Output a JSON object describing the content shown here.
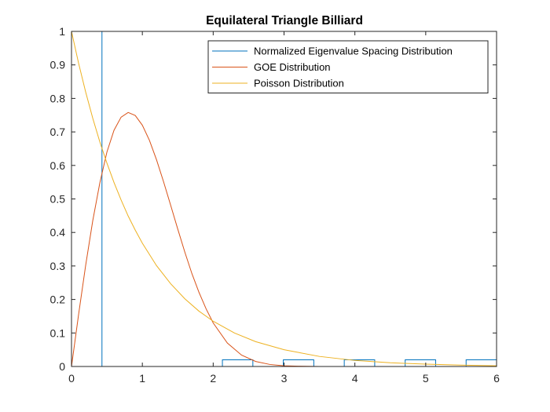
{
  "chart_data": {
    "type": "line",
    "title": "Equilateral Triangle Billiard",
    "xlabel": "",
    "ylabel": "",
    "xlim": [
      0,
      6
    ],
    "ylim": [
      0,
      1
    ],
    "x_ticks": [
      "0",
      "1",
      "2",
      "3",
      "4",
      "5",
      "6"
    ],
    "y_ticks": [
      "0",
      "0.1",
      "0.2",
      "0.3",
      "0.4",
      "0.5",
      "0.6",
      "0.7",
      "0.8",
      "0.9",
      "1"
    ],
    "grid": false,
    "legend_position": "top-right",
    "histogram": {
      "name": "Normalized Eigenvalue Spacing Distribution",
      "color": "#0072BD",
      "spike": {
        "x": 0.43,
        "height": 1.0
      },
      "bins": [
        {
          "x0": 0.43,
          "x1": 2.13,
          "value": 0
        },
        {
          "x0": 2.13,
          "x1": 2.56,
          "value": 0.02
        },
        {
          "x0": 2.56,
          "x1": 2.99,
          "value": 0
        },
        {
          "x0": 2.99,
          "x1": 3.42,
          "value": 0.02
        },
        {
          "x0": 3.42,
          "x1": 3.85,
          "value": 0
        },
        {
          "x0": 3.85,
          "x1": 4.28,
          "value": 0.02
        },
        {
          "x0": 4.28,
          "x1": 4.71,
          "value": 0
        },
        {
          "x0": 4.71,
          "x1": 5.14,
          "value": 0.02
        },
        {
          "x0": 5.14,
          "x1": 5.57,
          "value": 0
        },
        {
          "x0": 5.57,
          "x1": 6.0,
          "value": 0.02
        }
      ]
    },
    "series": [
      {
        "name": "GOE Distribution",
        "color": "#D95319",
        "x": [
          0,
          0.1,
          0.2,
          0.3,
          0.4,
          0.5,
          0.6,
          0.7,
          0.8,
          0.9,
          1.0,
          1.1,
          1.2,
          1.3,
          1.4,
          1.5,
          1.6,
          1.7,
          1.8,
          1.9,
          2.0,
          2.2,
          2.4,
          2.6,
          2.8,
          3.0,
          3.2,
          3.5,
          4.0,
          5.0,
          6.0
        ],
        "values": [
          0,
          0.155,
          0.302,
          0.435,
          0.548,
          0.64,
          0.705,
          0.744,
          0.758,
          0.749,
          0.72,
          0.675,
          0.617,
          0.551,
          0.481,
          0.41,
          0.341,
          0.277,
          0.221,
          0.172,
          0.13,
          0.07,
          0.034,
          0.015,
          0.006,
          0.002,
          0.001,
          0.0,
          0.0,
          0.0,
          0.0
        ]
      },
      {
        "name": "Poisson Distribution",
        "color": "#EDB120",
        "x": [
          0,
          0.1,
          0.2,
          0.3,
          0.4,
          0.5,
          0.6,
          0.7,
          0.8,
          0.9,
          1.0,
          1.2,
          1.4,
          1.6,
          1.8,
          2.0,
          2.3,
          2.6,
          3.0,
          3.5,
          4.0,
          4.5,
          5.0,
          5.5,
          6.0
        ],
        "values": [
          1,
          0.905,
          0.819,
          0.741,
          0.67,
          0.607,
          0.549,
          0.497,
          0.449,
          0.407,
          0.368,
          0.301,
          0.247,
          0.202,
          0.165,
          0.135,
          0.1,
          0.074,
          0.05,
          0.03,
          0.018,
          0.011,
          0.007,
          0.004,
          0.002
        ]
      }
    ]
  }
}
